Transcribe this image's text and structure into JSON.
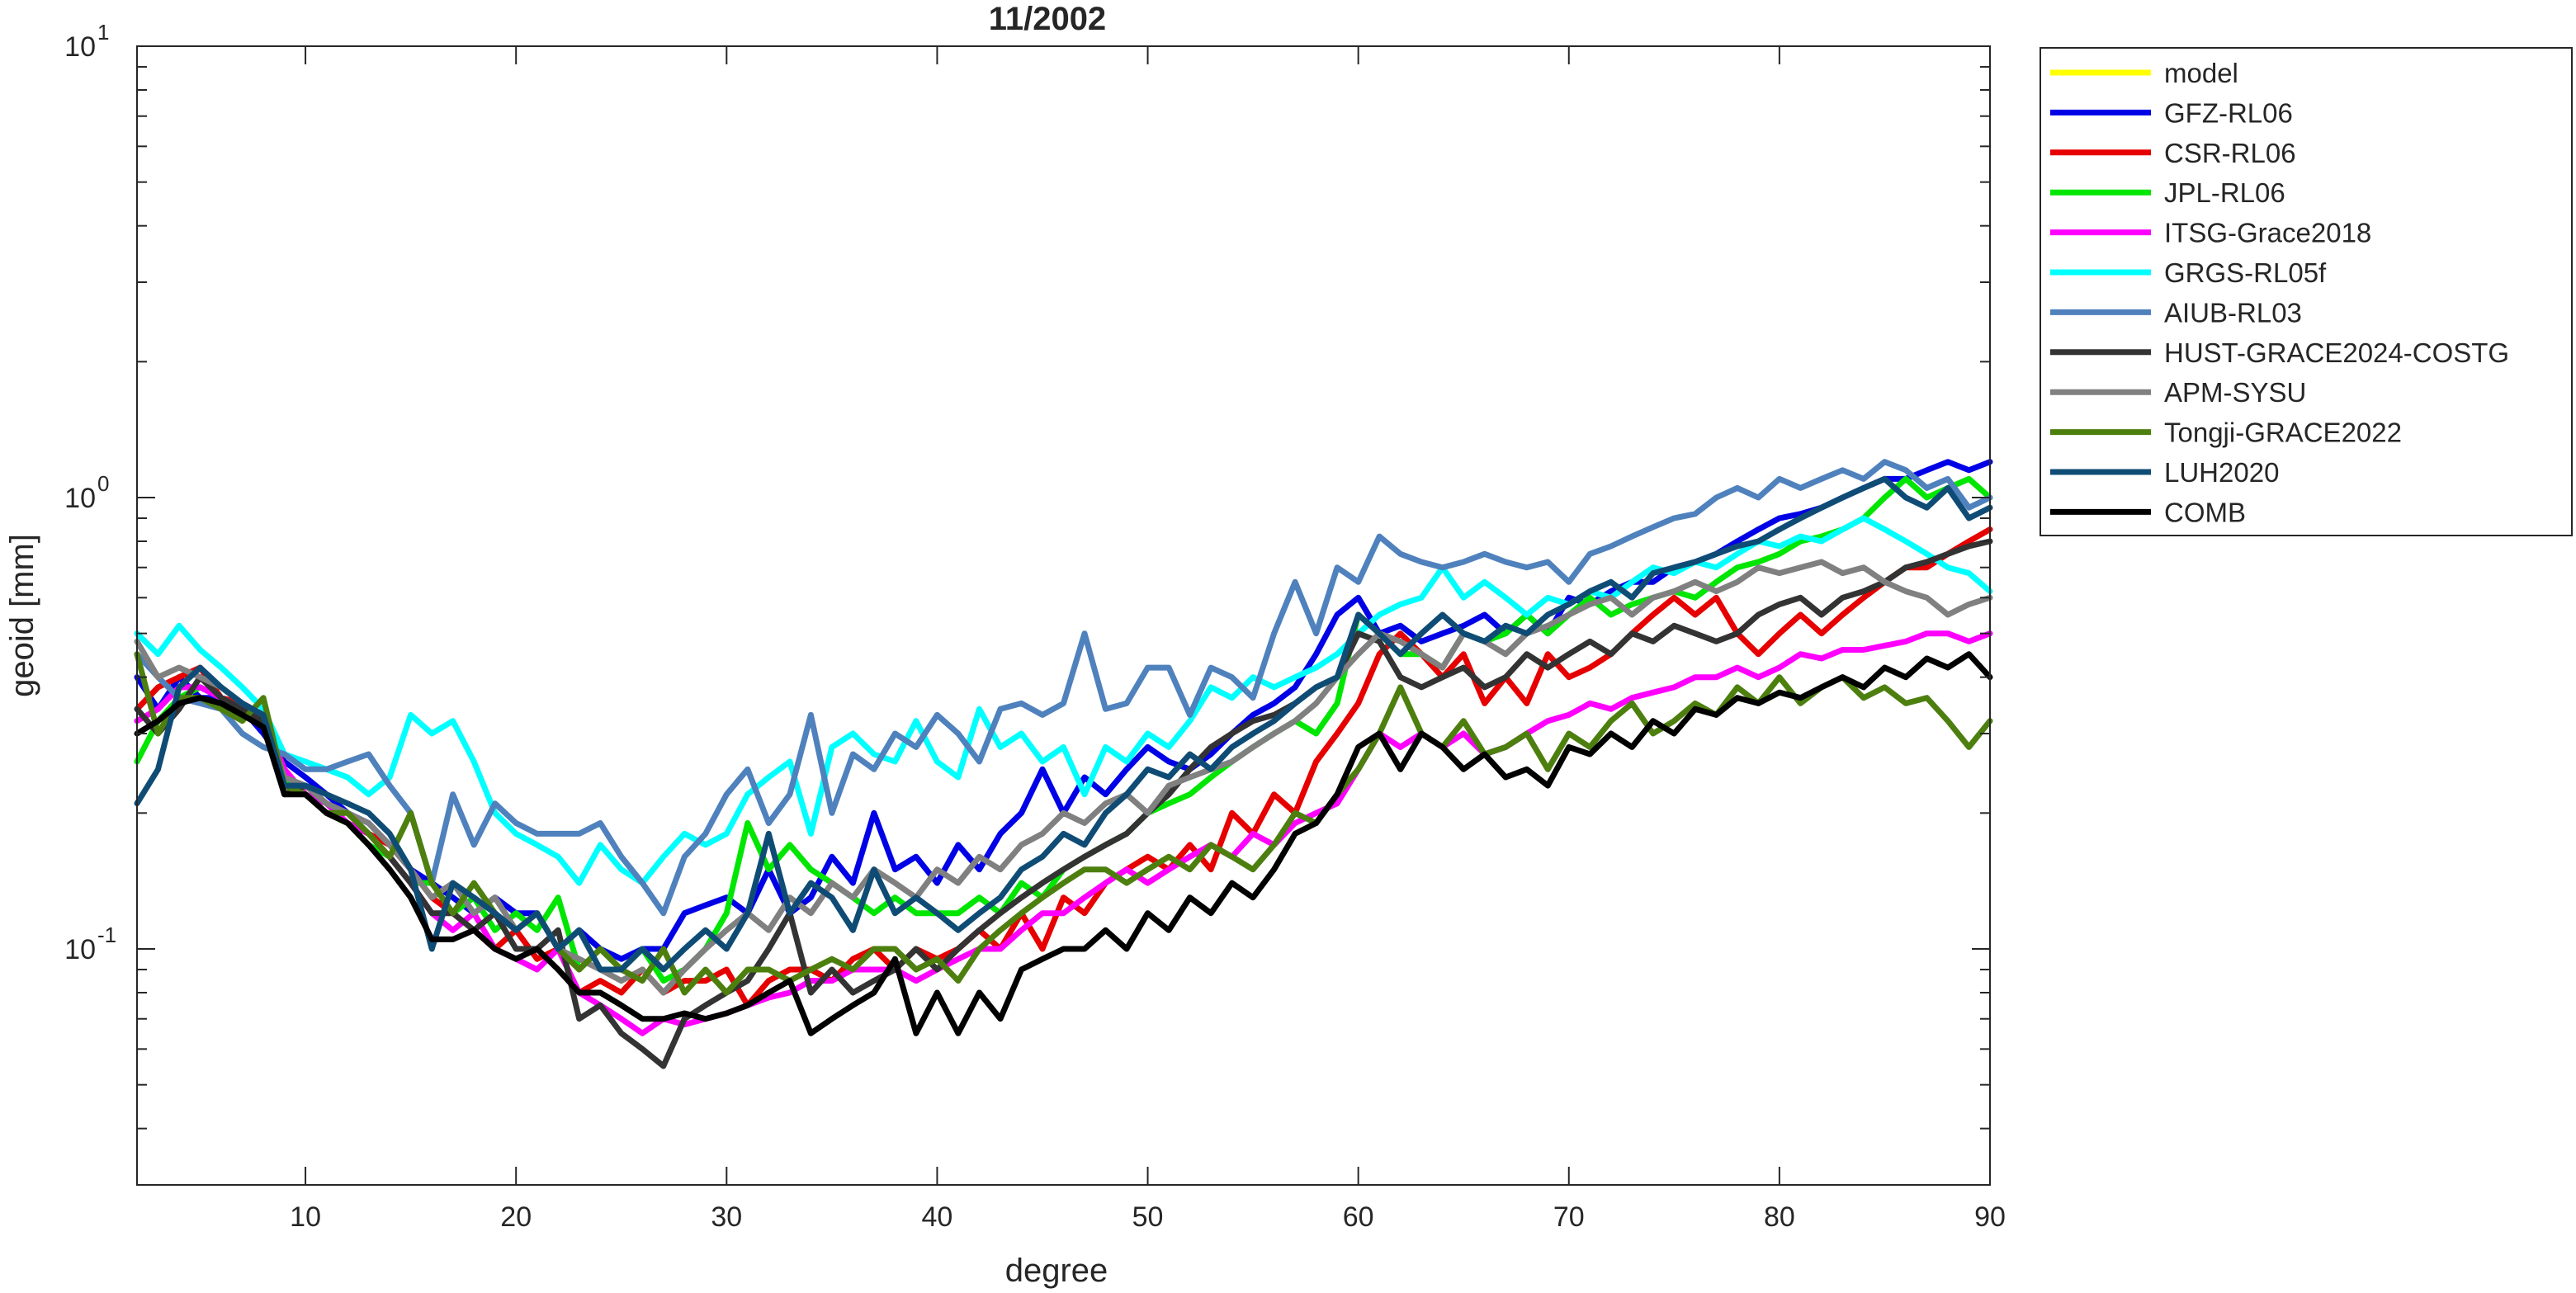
{
  "chart_data": {
    "type": "line",
    "title": "11/2002",
    "xlabel": "degree",
    "ylabel": "geoid [mm]",
    "xlim": [
      2,
      90
    ],
    "ylim": [
      0.03,
      10
    ],
    "yscale": "log",
    "grid": false,
    "legend_position": "outside-right-top",
    "x_ticks": [
      10,
      20,
      30,
      40,
      50,
      60,
      70,
      80,
      90
    ],
    "x_tick_labels": [
      "10",
      "20",
      "30",
      "40",
      "50",
      "60",
      "70",
      "80",
      "90"
    ],
    "y_ticks": [
      0.1,
      1,
      10
    ],
    "y_tick_labels": [
      {
        "base": "10",
        "exp": "-1"
      },
      {
        "base": "10",
        "exp": "0"
      },
      {
        "base": "10",
        "exp": "1"
      }
    ],
    "x_start": 2,
    "series": [
      {
        "name": "model",
        "color": "#FFFF00",
        "values": []
      },
      {
        "name": "GFZ-RL06",
        "color": "#0000E6",
        "values": [
          0.4,
          0.34,
          0.4,
          0.36,
          0.36,
          0.34,
          0.3,
          0.26,
          0.24,
          0.22,
          0.2,
          0.19,
          0.17,
          0.15,
          0.14,
          0.13,
          0.12,
          0.13,
          0.12,
          0.12,
          0.1,
          0.11,
          0.1,
          0.095,
          0.1,
          0.1,
          0.12,
          0.125,
          0.13,
          0.12,
          0.15,
          0.12,
          0.13,
          0.16,
          0.14,
          0.2,
          0.15,
          0.16,
          0.14,
          0.17,
          0.15,
          0.18,
          0.2,
          0.25,
          0.2,
          0.24,
          0.22,
          0.25,
          0.28,
          0.26,
          0.25,
          0.27,
          0.3,
          0.33,
          0.35,
          0.38,
          0.45,
          0.55,
          0.6,
          0.5,
          0.52,
          0.48,
          0.5,
          0.52,
          0.55,
          0.5,
          0.55,
          0.5,
          0.6,
          0.58,
          0.62,
          0.65,
          0.65,
          0.7,
          0.72,
          0.75,
          0.8,
          0.85,
          0.9,
          0.92,
          0.95,
          1.0,
          1.05,
          1.1,
          1.1,
          1.15,
          1.2,
          1.15,
          1.2
        ]
      },
      {
        "name": "CSR-RL06",
        "color": "#E60000",
        "values": [
          0.34,
          0.38,
          0.4,
          0.42,
          0.36,
          0.35,
          0.33,
          0.25,
          0.22,
          0.2,
          0.19,
          0.18,
          0.17,
          0.15,
          0.13,
          0.12,
          0.11,
          0.1,
          0.11,
          0.095,
          0.1,
          0.08,
          0.085,
          0.08,
          0.09,
          0.08,
          0.085,
          0.085,
          0.09,
          0.075,
          0.085,
          0.09,
          0.09,
          0.085,
          0.095,
          0.1,
          0.09,
          0.1,
          0.095,
          0.1,
          0.11,
          0.1,
          0.12,
          0.1,
          0.13,
          0.12,
          0.14,
          0.15,
          0.16,
          0.15,
          0.17,
          0.15,
          0.2,
          0.18,
          0.22,
          0.2,
          0.26,
          0.3,
          0.35,
          0.45,
          0.5,
          0.45,
          0.4,
          0.45,
          0.35,
          0.4,
          0.35,
          0.45,
          0.4,
          0.42,
          0.45,
          0.5,
          0.55,
          0.6,
          0.55,
          0.6,
          0.5,
          0.45,
          0.5,
          0.55,
          0.5,
          0.55,
          0.6,
          0.65,
          0.7,
          0.7,
          0.75,
          0.8,
          0.85
        ]
      },
      {
        "name": "JPL-RL06",
        "color": "#00E600",
        "values": [
          0.26,
          0.32,
          0.36,
          0.38,
          0.36,
          0.34,
          0.32,
          0.24,
          0.22,
          0.2,
          0.19,
          0.17,
          0.16,
          0.14,
          0.14,
          0.12,
          0.13,
          0.11,
          0.12,
          0.11,
          0.13,
          0.09,
          0.1,
          0.09,
          0.1,
          0.085,
          0.09,
          0.1,
          0.12,
          0.19,
          0.15,
          0.17,
          0.15,
          0.14,
          0.13,
          0.12,
          0.13,
          0.12,
          0.12,
          0.12,
          0.13,
          0.12,
          0.14,
          0.13,
          0.15,
          0.16,
          0.17,
          0.18,
          0.2,
          0.21,
          0.22,
          0.24,
          0.26,
          0.28,
          0.3,
          0.32,
          0.3,
          0.35,
          0.55,
          0.5,
          0.45,
          0.45,
          0.42,
          0.5,
          0.48,
          0.5,
          0.55,
          0.5,
          0.55,
          0.6,
          0.55,
          0.58,
          0.6,
          0.62,
          0.6,
          0.65,
          0.7,
          0.72,
          0.75,
          0.8,
          0.82,
          0.85,
          0.9,
          1.0,
          1.1,
          1.0,
          1.05,
          1.1,
          1.0
        ]
      },
      {
        "name": "ITSG-Grace2018",
        "color": "#FF00FF",
        "values": [
          0.32,
          0.34,
          0.38,
          0.38,
          0.36,
          0.34,
          0.32,
          0.25,
          0.22,
          0.21,
          0.19,
          0.18,
          0.16,
          0.14,
          0.12,
          0.11,
          0.12,
          0.1,
          0.095,
          0.09,
          0.1,
          0.08,
          0.075,
          0.07,
          0.065,
          0.07,
          0.068,
          0.07,
          0.072,
          0.075,
          0.078,
          0.08,
          0.085,
          0.085,
          0.09,
          0.09,
          0.09,
          0.085,
          0.09,
          0.095,
          0.1,
          0.1,
          0.11,
          0.12,
          0.12,
          0.13,
          0.14,
          0.15,
          0.14,
          0.15,
          0.16,
          0.17,
          0.16,
          0.18,
          0.17,
          0.19,
          0.2,
          0.21,
          0.25,
          0.3,
          0.28,
          0.3,
          0.28,
          0.3,
          0.27,
          0.28,
          0.3,
          0.32,
          0.33,
          0.35,
          0.34,
          0.36,
          0.37,
          0.38,
          0.4,
          0.4,
          0.42,
          0.4,
          0.42,
          0.45,
          0.44,
          0.46,
          0.46,
          0.47,
          0.48,
          0.5,
          0.5,
          0.48,
          0.5
        ]
      },
      {
        "name": "GRGS-RL05f",
        "color": "#00FFFF",
        "values": [
          0.5,
          0.45,
          0.52,
          0.46,
          0.42,
          0.38,
          0.34,
          0.27,
          0.26,
          0.25,
          0.24,
          0.22,
          0.24,
          0.33,
          0.3,
          0.32,
          0.26,
          0.2,
          0.18,
          0.17,
          0.16,
          0.14,
          0.17,
          0.15,
          0.14,
          0.16,
          0.18,
          0.17,
          0.18,
          0.22,
          0.24,
          0.26,
          0.18,
          0.28,
          0.3,
          0.27,
          0.26,
          0.32,
          0.26,
          0.24,
          0.34,
          0.28,
          0.3,
          0.26,
          0.28,
          0.22,
          0.28,
          0.26,
          0.3,
          0.28,
          0.32,
          0.38,
          0.36,
          0.4,
          0.38,
          0.4,
          0.42,
          0.45,
          0.5,
          0.55,
          0.58,
          0.6,
          0.7,
          0.6,
          0.65,
          0.6,
          0.55,
          0.6,
          0.58,
          0.62,
          0.6,
          0.65,
          0.7,
          0.68,
          0.72,
          0.7,
          0.75,
          0.8,
          0.78,
          0.82,
          0.8,
          0.85,
          0.9,
          0.85,
          0.8,
          0.75,
          0.7,
          0.68,
          0.62
        ]
      },
      {
        "name": "AIUB-RL03",
        "color": "#4F81BD",
        "values": [
          0.45,
          0.4,
          0.36,
          0.35,
          0.34,
          0.3,
          0.28,
          0.27,
          0.25,
          0.25,
          0.26,
          0.27,
          0.23,
          0.2,
          0.14,
          0.22,
          0.17,
          0.21,
          0.19,
          0.18,
          0.18,
          0.18,
          0.19,
          0.16,
          0.14,
          0.12,
          0.16,
          0.18,
          0.22,
          0.25,
          0.19,
          0.22,
          0.33,
          0.2,
          0.27,
          0.25,
          0.3,
          0.28,
          0.33,
          0.3,
          0.26,
          0.34,
          0.35,
          0.33,
          0.35,
          0.5,
          0.34,
          0.35,
          0.42,
          0.42,
          0.33,
          0.42,
          0.4,
          0.36,
          0.5,
          0.65,
          0.5,
          0.7,
          0.65,
          0.82,
          0.75,
          0.72,
          0.7,
          0.72,
          0.75,
          0.72,
          0.7,
          0.72,
          0.65,
          0.75,
          0.78,
          0.82,
          0.86,
          0.9,
          0.92,
          1.0,
          1.05,
          1.0,
          1.1,
          1.05,
          1.1,
          1.15,
          1.1,
          1.2,
          1.15,
          1.05,
          1.1,
          0.95,
          1.0
        ]
      },
      {
        "name": "HUST-GRACE2024-COSTG",
        "color": "#333333",
        "values": [
          0.34,
          0.3,
          0.34,
          0.4,
          0.36,
          0.34,
          0.32,
          0.22,
          0.23,
          0.21,
          0.2,
          0.18,
          0.16,
          0.14,
          0.12,
          0.12,
          0.11,
          0.12,
          0.1,
          0.1,
          0.11,
          0.07,
          0.075,
          0.065,
          0.06,
          0.055,
          0.07,
          0.075,
          0.08,
          0.085,
          0.1,
          0.12,
          0.08,
          0.09,
          0.08,
          0.085,
          0.09,
          0.1,
          0.09,
          0.1,
          0.11,
          0.12,
          0.13,
          0.14,
          0.15,
          0.16,
          0.17,
          0.18,
          0.2,
          0.22,
          0.25,
          0.28,
          0.3,
          0.32,
          0.33,
          0.35,
          0.38,
          0.4,
          0.5,
          0.48,
          0.4,
          0.38,
          0.4,
          0.42,
          0.38,
          0.4,
          0.45,
          0.42,
          0.45,
          0.48,
          0.45,
          0.5,
          0.48,
          0.52,
          0.5,
          0.48,
          0.5,
          0.55,
          0.58,
          0.6,
          0.55,
          0.6,
          0.62,
          0.65,
          0.7,
          0.72,
          0.75,
          0.78,
          0.8
        ]
      },
      {
        "name": "APM-SYSU",
        "color": "#808080",
        "values": [
          0.48,
          0.4,
          0.42,
          0.4,
          0.38,
          0.35,
          0.33,
          0.24,
          0.23,
          0.21,
          0.2,
          0.19,
          0.17,
          0.15,
          0.13,
          0.14,
          0.12,
          0.13,
          0.11,
          0.12,
          0.1,
          0.095,
          0.09,
          0.085,
          0.09,
          0.08,
          0.09,
          0.1,
          0.11,
          0.12,
          0.11,
          0.13,
          0.12,
          0.14,
          0.13,
          0.15,
          0.14,
          0.13,
          0.15,
          0.14,
          0.16,
          0.15,
          0.17,
          0.18,
          0.2,
          0.19,
          0.21,
          0.22,
          0.2,
          0.23,
          0.24,
          0.25,
          0.26,
          0.28,
          0.3,
          0.32,
          0.35,
          0.4,
          0.45,
          0.5,
          0.48,
          0.45,
          0.42,
          0.5,
          0.48,
          0.45,
          0.5,
          0.52,
          0.55,
          0.58,
          0.6,
          0.55,
          0.6,
          0.62,
          0.65,
          0.62,
          0.65,
          0.7,
          0.68,
          0.7,
          0.72,
          0.68,
          0.7,
          0.65,
          0.62,
          0.6,
          0.55,
          0.58,
          0.6
        ]
      },
      {
        "name": "Tongji-GRACE2022",
        "color": "#4D7F0F",
        "values": [
          0.45,
          0.3,
          0.36,
          0.36,
          0.34,
          0.32,
          0.36,
          0.23,
          0.22,
          0.2,
          0.2,
          0.18,
          0.16,
          0.2,
          0.14,
          0.12,
          0.14,
          0.12,
          0.11,
          0.12,
          0.1,
          0.09,
          0.1,
          0.09,
          0.085,
          0.1,
          0.08,
          0.09,
          0.08,
          0.09,
          0.09,
          0.085,
          0.09,
          0.095,
          0.09,
          0.1,
          0.1,
          0.09,
          0.095,
          0.085,
          0.1,
          0.11,
          0.12,
          0.13,
          0.14,
          0.15,
          0.15,
          0.14,
          0.15,
          0.16,
          0.15,
          0.17,
          0.16,
          0.15,
          0.17,
          0.2,
          0.19,
          0.22,
          0.25,
          0.3,
          0.38,
          0.3,
          0.28,
          0.32,
          0.27,
          0.28,
          0.3,
          0.25,
          0.3,
          0.28,
          0.32,
          0.35,
          0.3,
          0.32,
          0.35,
          0.33,
          0.38,
          0.35,
          0.4,
          0.35,
          0.38,
          0.4,
          0.36,
          0.38,
          0.35,
          0.36,
          0.32,
          0.28,
          0.32
        ]
      },
      {
        "name": "LUH2020",
        "color": "#0F4C75",
        "values": [
          0.21,
          0.25,
          0.38,
          0.42,
          0.38,
          0.35,
          0.33,
          0.23,
          0.23,
          0.22,
          0.21,
          0.2,
          0.18,
          0.15,
          0.1,
          0.14,
          0.13,
          0.12,
          0.11,
          0.12,
          0.1,
          0.11,
          0.09,
          0.09,
          0.1,
          0.09,
          0.1,
          0.11,
          0.1,
          0.12,
          0.18,
          0.12,
          0.14,
          0.13,
          0.11,
          0.15,
          0.12,
          0.13,
          0.12,
          0.11,
          0.12,
          0.13,
          0.15,
          0.16,
          0.18,
          0.17,
          0.2,
          0.22,
          0.25,
          0.24,
          0.27,
          0.25,
          0.28,
          0.3,
          0.32,
          0.35,
          0.38,
          0.4,
          0.55,
          0.5,
          0.45,
          0.5,
          0.55,
          0.5,
          0.48,
          0.52,
          0.5,
          0.55,
          0.58,
          0.62,
          0.65,
          0.6,
          0.68,
          0.7,
          0.72,
          0.75,
          0.78,
          0.8,
          0.85,
          0.9,
          0.95,
          1.0,
          1.05,
          1.1,
          1.0,
          0.95,
          1.05,
          0.9,
          0.95
        ]
      },
      {
        "name": "COMB",
        "color": "#000000",
        "values": [
          0.3,
          0.32,
          0.35,
          0.36,
          0.35,
          0.33,
          0.31,
          0.22,
          0.22,
          0.2,
          0.19,
          0.17,
          0.15,
          0.13,
          0.105,
          0.105,
          0.11,
          0.1,
          0.095,
          0.1,
          0.09,
          0.08,
          0.08,
          0.075,
          0.07,
          0.07,
          0.072,
          0.07,
          0.072,
          0.075,
          0.08,
          0.085,
          0.065,
          0.07,
          0.075,
          0.08,
          0.095,
          0.065,
          0.08,
          0.065,
          0.08,
          0.07,
          0.09,
          0.095,
          0.1,
          0.1,
          0.11,
          0.1,
          0.12,
          0.11,
          0.13,
          0.12,
          0.14,
          0.13,
          0.15,
          0.18,
          0.19,
          0.22,
          0.28,
          0.3,
          0.25,
          0.3,
          0.28,
          0.25,
          0.27,
          0.24,
          0.25,
          0.23,
          0.28,
          0.27,
          0.3,
          0.28,
          0.32,
          0.3,
          0.34,
          0.33,
          0.36,
          0.35,
          0.37,
          0.36,
          0.38,
          0.4,
          0.38,
          0.42,
          0.4,
          0.44,
          0.42,
          0.45,
          0.4
        ]
      }
    ]
  }
}
